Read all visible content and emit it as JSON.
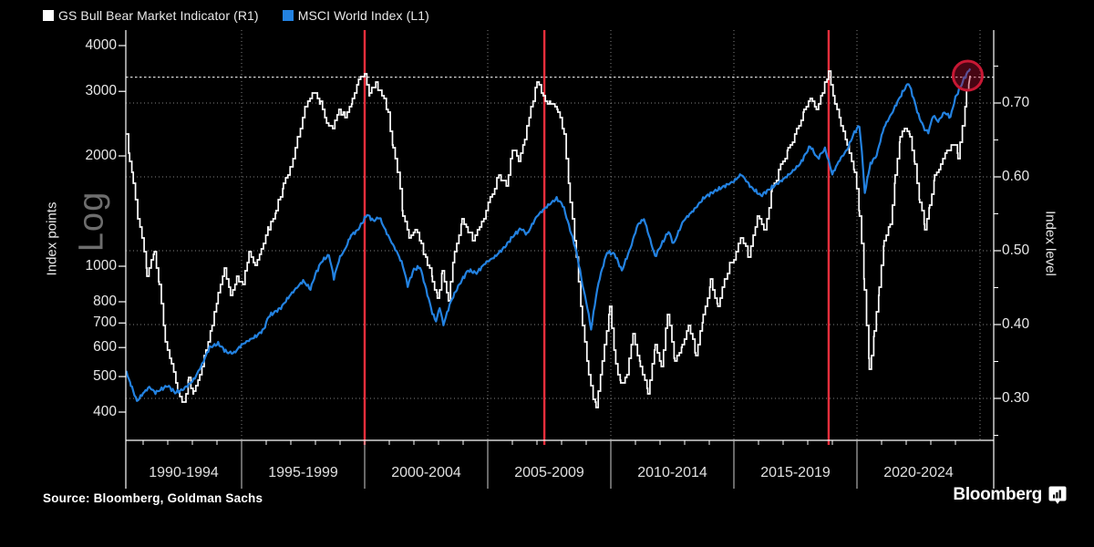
{
  "legend": [
    {
      "label": "GS Bull Bear Market Indicator (R1)",
      "color": "#ffffff"
    },
    {
      "label": "MSCI World Index (L1)",
      "color": "#2382e1"
    }
  ],
  "left_axis": {
    "title": "Index points",
    "scale_label": "Log",
    "ticks": [
      4000,
      3000,
      2000,
      1000,
      800,
      700,
      600,
      500,
      400
    ]
  },
  "right_axis": {
    "title": "Index level",
    "ticks": [
      "0.70",
      "0.60",
      "0.50",
      "0.40",
      "0.30"
    ]
  },
  "x_axis": {
    "labels": [
      "1990-1994",
      "1995-1999",
      "2000-2004",
      "2005-2009",
      "2010-2014",
      "2015-2019",
      "2020-2024"
    ]
  },
  "footer": {
    "source": "Source: Bloomberg, Goldman Sachs",
    "brand": "Bloomberg"
  },
  "colors": {
    "background": "#000000",
    "gs_line": "#ffffff",
    "msci_line": "#2382e1",
    "event_line_red": "#ee2e3c",
    "highlight_circle": "#c81834",
    "grid": "#999999",
    "threshold": "#d8d8d8",
    "text": "#e8e8e8",
    "log_watermark": "#6e6e6e"
  },
  "chart_data": {
    "type": "line",
    "title": "",
    "x_range_years": [
      1990.3,
      2025.55
    ],
    "left_axis": {
      "type": "log",
      "label": "Index points",
      "tick_values": [
        4000,
        3000,
        2000,
        1000,
        800,
        700,
        600,
        500,
        400
      ]
    },
    "right_axis": {
      "type": "linear",
      "label": "Index level",
      "tick_values": [
        0.7,
        0.6,
        0.5,
        0.4,
        0.3
      ],
      "minor_tick_values": [
        0.75,
        0.65,
        0.55,
        0.45,
        0.35,
        0.25
      ]
    },
    "gridline_years": [
      1995,
      2000,
      2005,
      2010,
      2015,
      2020,
      2025
    ],
    "annotations": {
      "threshold_line_right_axis": 0.735,
      "event_vlines_years": [
        2000.0,
        2007.3,
        2018.85
      ],
      "highlight_circle": {
        "year": 2024.5,
        "right_axis_value": 0.737,
        "radius_px": 16
      }
    },
    "series": [
      {
        "name": "GS Bull Bear Market Indicator (R1)",
        "axis": "right",
        "color": "#ffffff",
        "style": "step",
        "points": [
          [
            1990.32,
            0.655
          ],
          [
            1990.45,
            0.62
          ],
          [
            1990.6,
            0.59
          ],
          [
            1990.78,
            0.545
          ],
          [
            1990.95,
            0.52
          ],
          [
            1991.15,
            0.468
          ],
          [
            1991.45,
            0.497
          ],
          [
            1991.65,
            0.455
          ],
          [
            1991.9,
            0.375
          ],
          [
            1992.15,
            0.35
          ],
          [
            1992.4,
            0.305
          ],
          [
            1992.65,
            0.295
          ],
          [
            1992.85,
            0.325
          ],
          [
            1993.05,
            0.308
          ],
          [
            1993.3,
            0.335
          ],
          [
            1993.55,
            0.365
          ],
          [
            1993.8,
            0.4
          ],
          [
            1994.05,
            0.44
          ],
          [
            1994.3,
            0.48
          ],
          [
            1994.55,
            0.435
          ],
          [
            1994.8,
            0.465
          ],
          [
            1995.05,
            0.455
          ],
          [
            1995.3,
            0.5
          ],
          [
            1995.55,
            0.475
          ],
          [
            1995.8,
            0.505
          ],
          [
            1996.1,
            0.53
          ],
          [
            1996.4,
            0.555
          ],
          [
            1996.7,
            0.59
          ],
          [
            1997.0,
            0.615
          ],
          [
            1997.3,
            0.655
          ],
          [
            1997.6,
            0.695
          ],
          [
            1997.9,
            0.715
          ],
          [
            1998.2,
            0.7
          ],
          [
            1998.45,
            0.675
          ],
          [
            1998.7,
            0.665
          ],
          [
            1998.95,
            0.695
          ],
          [
            1999.2,
            0.678
          ],
          [
            1999.5,
            0.705
          ],
          [
            1999.75,
            0.733
          ],
          [
            2000.0,
            0.737
          ],
          [
            2000.2,
            0.712
          ],
          [
            2000.45,
            0.728
          ],
          [
            2000.7,
            0.71
          ],
          [
            2000.95,
            0.685
          ],
          [
            2001.15,
            0.638
          ],
          [
            2001.35,
            0.605
          ],
          [
            2001.55,
            0.55
          ],
          [
            2001.8,
            0.515
          ],
          [
            2002.05,
            0.53
          ],
          [
            2002.3,
            0.508
          ],
          [
            2002.55,
            0.483
          ],
          [
            2002.75,
            0.462
          ],
          [
            2002.95,
            0.435
          ],
          [
            2003.15,
            0.472
          ],
          [
            2003.4,
            0.437
          ],
          [
            2003.65,
            0.495
          ],
          [
            2003.95,
            0.542
          ],
          [
            2004.2,
            0.525
          ],
          [
            2004.4,
            0.515
          ],
          [
            2004.75,
            0.538
          ],
          [
            2005.1,
            0.572
          ],
          [
            2005.45,
            0.602
          ],
          [
            2005.75,
            0.59
          ],
          [
            2006.0,
            0.637
          ],
          [
            2006.25,
            0.622
          ],
          [
            2006.5,
            0.652
          ],
          [
            2006.75,
            0.695
          ],
          [
            2007.0,
            0.728
          ],
          [
            2007.25,
            0.708
          ],
          [
            2007.55,
            0.7
          ],
          [
            2007.85,
            0.69
          ],
          [
            2008.1,
            0.655
          ],
          [
            2008.35,
            0.57
          ],
          [
            2008.6,
            0.49
          ],
          [
            2008.85,
            0.4
          ],
          [
            2009.1,
            0.33
          ],
          [
            2009.4,
            0.288
          ],
          [
            2009.65,
            0.35
          ],
          [
            2009.95,
            0.42
          ],
          [
            2010.2,
            0.35
          ],
          [
            2010.4,
            0.318
          ],
          [
            2010.65,
            0.335
          ],
          [
            2010.9,
            0.385
          ],
          [
            2011.2,
            0.345
          ],
          [
            2011.5,
            0.307
          ],
          [
            2011.8,
            0.37
          ],
          [
            2012.05,
            0.345
          ],
          [
            2012.3,
            0.415
          ],
          [
            2012.6,
            0.35
          ],
          [
            2012.9,
            0.372
          ],
          [
            2013.15,
            0.402
          ],
          [
            2013.45,
            0.358
          ],
          [
            2013.75,
            0.41
          ],
          [
            2014.05,
            0.458
          ],
          [
            2014.35,
            0.425
          ],
          [
            2014.65,
            0.465
          ],
          [
            2015.0,
            0.49
          ],
          [
            2015.3,
            0.52
          ],
          [
            2015.6,
            0.49
          ],
          [
            2015.95,
            0.548
          ],
          [
            2016.25,
            0.525
          ],
          [
            2016.55,
            0.585
          ],
          [
            2016.9,
            0.615
          ],
          [
            2017.2,
            0.638
          ],
          [
            2017.55,
            0.662
          ],
          [
            2017.85,
            0.69
          ],
          [
            2018.1,
            0.708
          ],
          [
            2018.35,
            0.692
          ],
          [
            2018.6,
            0.715
          ],
          [
            2018.85,
            0.74
          ],
          [
            2019.1,
            0.702
          ],
          [
            2019.35,
            0.668
          ],
          [
            2019.6,
            0.645
          ],
          [
            2019.9,
            0.605
          ],
          [
            2020.1,
            0.55
          ],
          [
            2020.3,
            0.45
          ],
          [
            2020.5,
            0.34
          ],
          [
            2020.7,
            0.39
          ],
          [
            2020.9,
            0.45
          ],
          [
            2021.1,
            0.515
          ],
          [
            2021.35,
            0.535
          ],
          [
            2021.55,
            0.6
          ],
          [
            2021.75,
            0.655
          ],
          [
            2021.95,
            0.668
          ],
          [
            2022.15,
            0.655
          ],
          [
            2022.35,
            0.615
          ],
          [
            2022.55,
            0.567
          ],
          [
            2022.75,
            0.532
          ],
          [
            2022.95,
            0.56
          ],
          [
            2023.15,
            0.6
          ],
          [
            2023.4,
            0.617
          ],
          [
            2023.65,
            0.635
          ],
          [
            2023.9,
            0.645
          ],
          [
            2024.1,
            0.63
          ],
          [
            2024.3,
            0.67
          ],
          [
            2024.45,
            0.715
          ],
          [
            2024.6,
            0.737
          ]
        ]
      },
      {
        "name": "MSCI World Index (L1)",
        "axis": "left",
        "color": "#2382e1",
        "style": "line",
        "points": [
          [
            1990.32,
            515
          ],
          [
            1990.5,
            475
          ],
          [
            1990.75,
            428
          ],
          [
            1991.0,
            450
          ],
          [
            1991.25,
            468
          ],
          [
            1991.5,
            452
          ],
          [
            1991.75,
            462
          ],
          [
            1992.0,
            472
          ],
          [
            1992.3,
            452
          ],
          [
            1992.6,
            460
          ],
          [
            1992.9,
            478
          ],
          [
            1993.1,
            495
          ],
          [
            1993.4,
            540
          ],
          [
            1993.7,
            600
          ],
          [
            1994.05,
            615
          ],
          [
            1994.4,
            582
          ],
          [
            1994.7,
            580
          ],
          [
            1995.0,
            610
          ],
          [
            1995.3,
            628
          ],
          [
            1995.6,
            645
          ],
          [
            1995.9,
            672
          ],
          [
            1996.1,
            730
          ],
          [
            1996.35,
            750
          ],
          [
            1996.6,
            770
          ],
          [
            1997.0,
            838
          ],
          [
            1997.5,
            912
          ],
          [
            1997.8,
            866
          ],
          [
            1998.0,
            950
          ],
          [
            1998.25,
            1030
          ],
          [
            1998.55,
            1073
          ],
          [
            1998.75,
            928
          ],
          [
            1999.0,
            1059
          ],
          [
            1999.2,
            1110
          ],
          [
            1999.45,
            1216
          ],
          [
            1999.7,
            1250
          ],
          [
            1999.95,
            1330
          ],
          [
            2000.1,
            1385
          ],
          [
            2000.35,
            1330
          ],
          [
            2000.6,
            1360
          ],
          [
            2000.85,
            1250
          ],
          [
            2001.1,
            1160
          ],
          [
            2001.35,
            1080
          ],
          [
            2001.55,
            1005
          ],
          [
            2001.75,
            885
          ],
          [
            2002.0,
            980
          ],
          [
            2002.25,
            995
          ],
          [
            2002.5,
            862
          ],
          [
            2002.75,
            745
          ],
          [
            2002.9,
            708
          ],
          [
            2003.05,
            772
          ],
          [
            2003.2,
            692
          ],
          [
            2003.5,
            800
          ],
          [
            2003.8,
            880
          ],
          [
            2004.2,
            975
          ],
          [
            2004.55,
            958
          ],
          [
            2004.9,
            1020
          ],
          [
            2005.3,
            1062
          ],
          [
            2005.7,
            1130
          ],
          [
            2006.05,
            1212
          ],
          [
            2006.35,
            1268
          ],
          [
            2006.6,
            1222
          ],
          [
            2007.0,
            1370
          ],
          [
            2007.4,
            1455
          ],
          [
            2007.8,
            1530
          ],
          [
            2008.05,
            1470
          ],
          [
            2008.3,
            1290
          ],
          [
            2008.6,
            1095
          ],
          [
            2008.85,
            890
          ],
          [
            2009.05,
            770
          ],
          [
            2009.2,
            672
          ],
          [
            2009.5,
            900
          ],
          [
            2009.85,
            1092
          ],
          [
            2010.15,
            1080
          ],
          [
            2010.45,
            972
          ],
          [
            2010.8,
            1120
          ],
          [
            2011.1,
            1300
          ],
          [
            2011.35,
            1345
          ],
          [
            2011.6,
            1180
          ],
          [
            2011.8,
            1062
          ],
          [
            2012.1,
            1160
          ],
          [
            2012.35,
            1245
          ],
          [
            2012.55,
            1148
          ],
          [
            2012.95,
            1330
          ],
          [
            2013.4,
            1430
          ],
          [
            2013.8,
            1540
          ],
          [
            2014.2,
            1600
          ],
          [
            2014.6,
            1652
          ],
          [
            2015.0,
            1705
          ],
          [
            2015.3,
            1782
          ],
          [
            2015.7,
            1642
          ],
          [
            2016.1,
            1558
          ],
          [
            2016.5,
            1632
          ],
          [
            2016.9,
            1705
          ],
          [
            2017.3,
            1792
          ],
          [
            2017.7,
            1905
          ],
          [
            2018.1,
            2128
          ],
          [
            2018.4,
            1968
          ],
          [
            2018.7,
            2090
          ],
          [
            2019.0,
            1782
          ],
          [
            2019.3,
            1952
          ],
          [
            2019.6,
            2078
          ],
          [
            2019.9,
            2320
          ],
          [
            2020.1,
            2420
          ],
          [
            2020.32,
            1582
          ],
          [
            2020.55,
            1905
          ],
          [
            2020.8,
            2005
          ],
          [
            2021.1,
            2392
          ],
          [
            2021.4,
            2600
          ],
          [
            2021.7,
            2852
          ],
          [
            2021.95,
            3060
          ],
          [
            2022.1,
            3162
          ],
          [
            2022.3,
            2872
          ],
          [
            2022.5,
            2578
          ],
          [
            2022.75,
            2362
          ],
          [
            2022.9,
            2322
          ],
          [
            2023.1,
            2580
          ],
          [
            2023.3,
            2482
          ],
          [
            2023.55,
            2630
          ],
          [
            2023.8,
            2552
          ],
          [
            2024.0,
            2880
          ],
          [
            2024.2,
            3080
          ],
          [
            2024.4,
            3300
          ],
          [
            2024.6,
            3460
          ]
        ]
      }
    ]
  }
}
